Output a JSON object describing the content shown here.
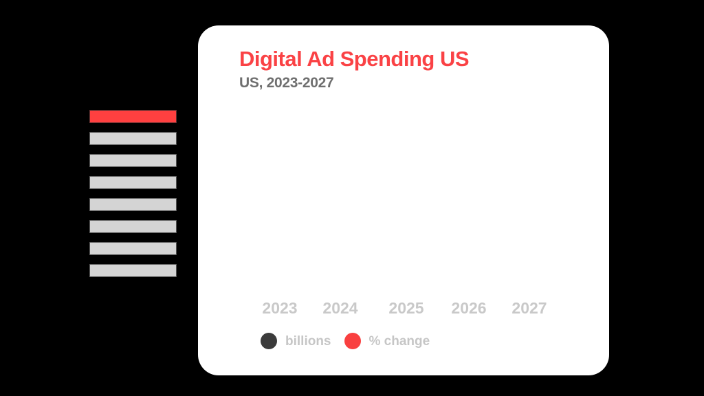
{
  "canvas": {
    "background_color": "#000000",
    "accent_color": "#fa4245"
  },
  "left_panel": {
    "bars": [
      {
        "name": "slide-bar-active",
        "color": "#ff4040"
      },
      {
        "name": "slide-bar",
        "color": "#d4d4d4"
      },
      {
        "name": "slide-bar",
        "color": "#d4d4d4"
      },
      {
        "name": "slide-bar",
        "color": "#d4d4d4"
      },
      {
        "name": "slide-bar",
        "color": "#d4d4d4"
      },
      {
        "name": "slide-bar",
        "color": "#d4d4d4"
      },
      {
        "name": "slide-bar",
        "color": "#d4d4d4"
      },
      {
        "name": "slide-bar",
        "color": "#d4d4d4"
      }
    ]
  },
  "card": {
    "title": "Digital Ad Spending US",
    "title_color": "#fa4245",
    "subtitle": "US, 2023-2027",
    "subtitle_color": "#6f6f6f",
    "background_color": "#ffffff"
  },
  "x_axis": {
    "labels": [
      "2023",
      "2024",
      "2025",
      "2026",
      "2027"
    ],
    "label_color": "#c9c9c9"
  },
  "legend": {
    "label_color": "#c6c6c6",
    "items": [
      {
        "label": "billions",
        "color": "#3b3b3b"
      },
      {
        "label": "% change",
        "color": "#f94040"
      }
    ]
  },
  "chart_data": {
    "type": "bar",
    "title": "Digital Ad Spending US",
    "subtitle": "US, 2023-2027",
    "categories": [
      "2023",
      "2024",
      "2025",
      "2026",
      "2027"
    ],
    "series": [
      {
        "name": "billions",
        "color": "#3b3b3b",
        "values": []
      },
      {
        "name": "% change",
        "color": "#f94040",
        "values": []
      }
    ],
    "legend_position": "bottom",
    "grid": false,
    "plot_area_empty": true
  }
}
